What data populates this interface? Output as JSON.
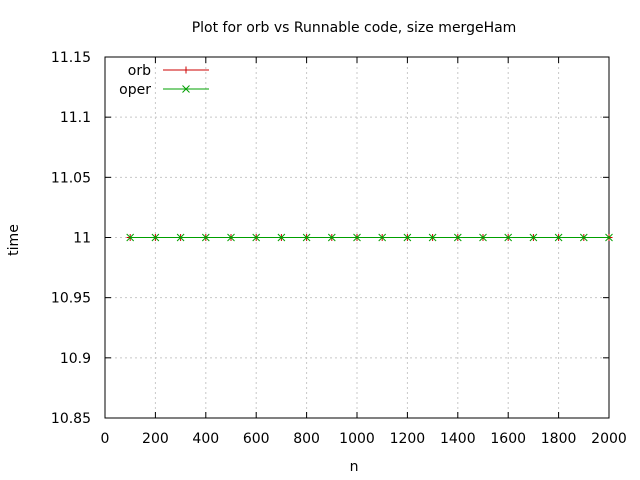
{
  "chart_data": {
    "type": "line",
    "title": "Plot for orb vs Runnable code, size mergeHam",
    "xlabel": "n",
    "ylabel": "time",
    "xlim": [
      0,
      2000
    ],
    "ylim": [
      10.85,
      11.15
    ],
    "x_ticks": [
      "0",
      "200",
      "400",
      "600",
      "800",
      "1000",
      "1200",
      "1400",
      "1600",
      "1800",
      "2000"
    ],
    "y_ticks": [
      "10.85",
      "10.9",
      "10.95",
      "11",
      "11.05",
      "11.1",
      "11.15"
    ],
    "grid": true,
    "legend_position": "top-left",
    "x": [
      100,
      200,
      300,
      400,
      500,
      600,
      700,
      800,
      900,
      1000,
      1100,
      1200,
      1300,
      1400,
      1500,
      1600,
      1700,
      1800,
      1900,
      2000
    ],
    "series": [
      {
        "name": "orb",
        "color": "#cc0000",
        "marker": "plus",
        "values": [
          11,
          11,
          11,
          11,
          11,
          11,
          11,
          11,
          11,
          11,
          11,
          11,
          11,
          11,
          11,
          11,
          11,
          11,
          11,
          11
        ]
      },
      {
        "name": "oper",
        "color": "#00a000",
        "marker": "cross",
        "values": [
          11,
          11,
          11,
          11,
          11,
          11,
          11,
          11,
          11,
          11,
          11,
          11,
          11,
          11,
          11,
          11,
          11,
          11,
          11,
          11
        ]
      }
    ]
  }
}
